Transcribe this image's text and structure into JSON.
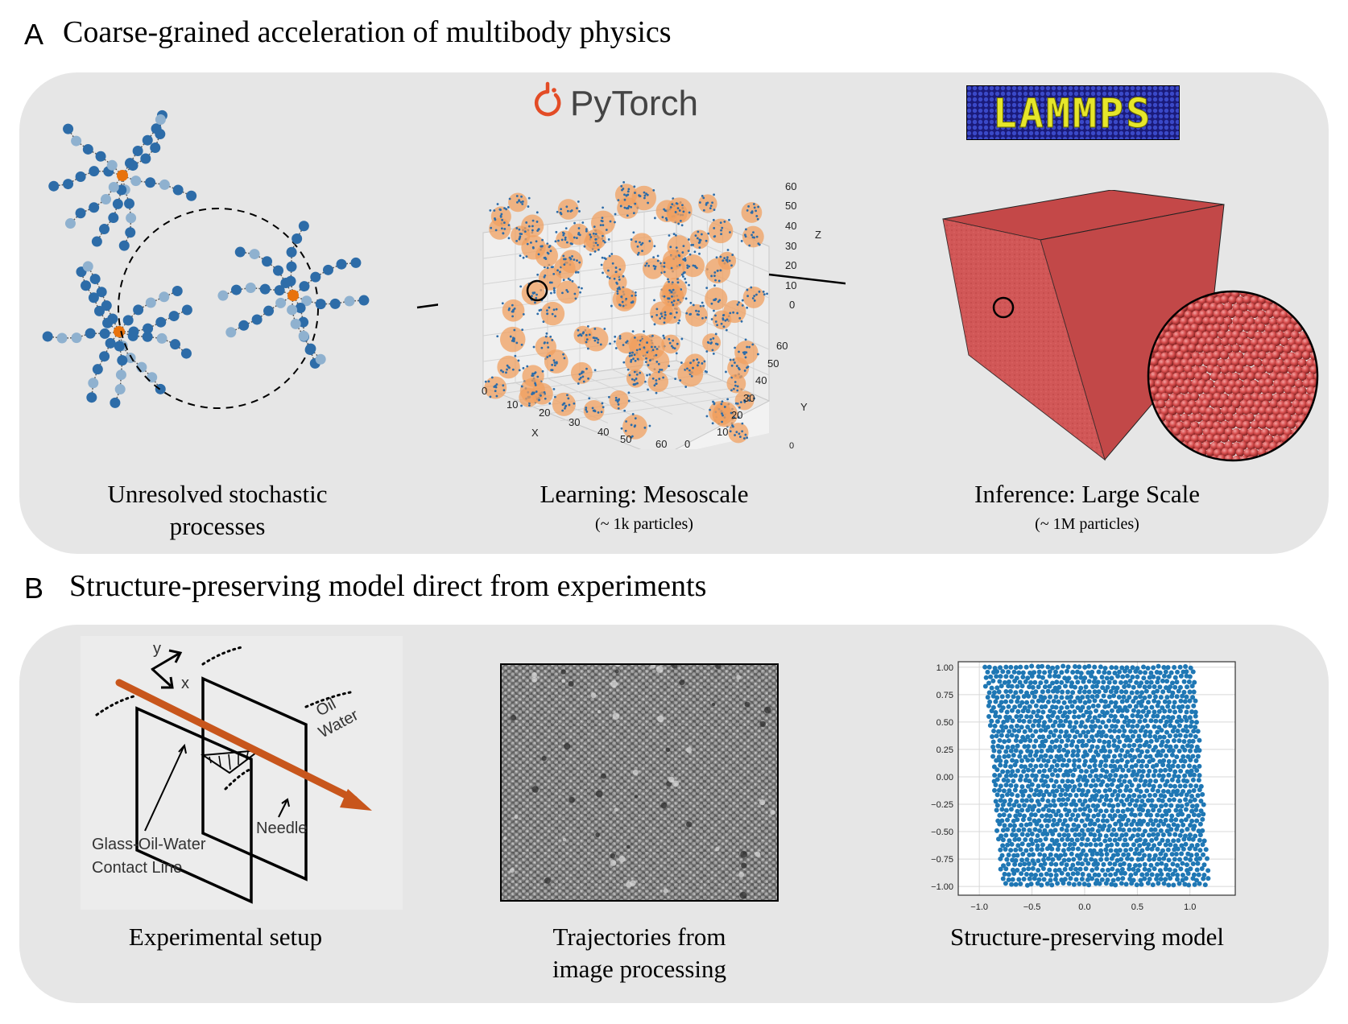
{
  "sectionA": {
    "letter": "A",
    "title": "Coarse-grained acceleration of multibody physics",
    "captions": {
      "left_line1": "Unresolved stochastic",
      "left_line2": "processes",
      "mid": "Learning: Mesoscale",
      "mid_sub": "(~ 1k particles)",
      "right": "Inference: Large Scale",
      "right_sub": "(~ 1M particles)"
    },
    "logos": {
      "pytorch": "PyTorch",
      "lammps": "LAMMPS"
    },
    "plot3d": {
      "x_label": "X",
      "y_label": "Y",
      "z_label": "Z",
      "x_ticks": [
        "0",
        "10",
        "20",
        "30",
        "40",
        "50",
        "60"
      ],
      "y_ticks": [
        "0",
        "10",
        "20",
        "30",
        "40",
        "50",
        "60"
      ],
      "z_ticks": [
        "0",
        "10",
        "20",
        "30",
        "40",
        "50",
        "60"
      ]
    }
  },
  "sectionB": {
    "letter": "B",
    "title": "Structure-preserving model direct from experiments",
    "captions": {
      "left": "Experimental setup",
      "mid_line1": "Trajectories from",
      "mid_line2": "image processing",
      "right": "Structure-preserving model"
    },
    "setup_labels": {
      "y": "y",
      "x": "x",
      "oil": "Oil",
      "water": "Water",
      "needle": "Needle",
      "contact1": "Glass-Oil-Water",
      "contact2": "Contact Line"
    }
  },
  "chart_data": {
    "type": "scatter",
    "x_ticks": [
      "−1.0",
      "−0.5",
      "0.0",
      "0.5",
      "1.0"
    ],
    "y_ticks": [
      "1.00",
      "0.75",
      "0.50",
      "0.25",
      "0.00",
      "−0.25",
      "−0.50",
      "−0.75",
      "−1.00"
    ],
    "xlim": [
      -1.2,
      1.43
    ],
    "ylim": [
      -1.08,
      1.05
    ],
    "region": {
      "x_min_top": -0.95,
      "x_max_top": 1.05,
      "x_min_bottom": -0.75,
      "x_max_bottom": 1.18,
      "y_min": -1.0,
      "y_max": 1.0
    },
    "marker_color": "#1f77b4",
    "grid": true
  },
  "colors": {
    "panel": "#e6e6e6",
    "blue": "#2d6ca8",
    "lightblue": "#8fb1cf",
    "orange": "#e8720c",
    "red": "#c94a4a",
    "needle": "#c8561c"
  }
}
